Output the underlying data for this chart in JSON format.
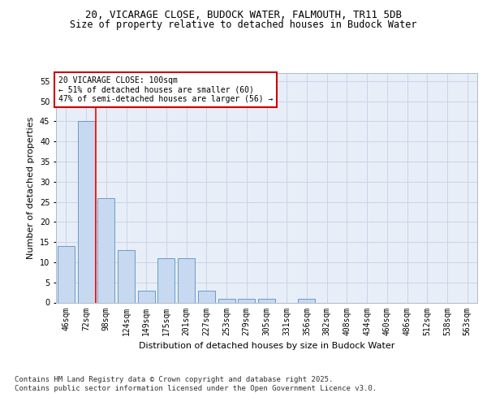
{
  "title_line1": "20, VICARAGE CLOSE, BUDOCK WATER, FALMOUTH, TR11 5DB",
  "title_line2": "Size of property relative to detached houses in Budock Water",
  "xlabel": "Distribution of detached houses by size in Budock Water",
  "ylabel": "Number of detached properties",
  "categories": [
    "46sqm",
    "72sqm",
    "98sqm",
    "124sqm",
    "149sqm",
    "175sqm",
    "201sqm",
    "227sqm",
    "253sqm",
    "279sqm",
    "305sqm",
    "331sqm",
    "356sqm",
    "382sqm",
    "408sqm",
    "434sqm",
    "460sqm",
    "486sqm",
    "512sqm",
    "538sqm",
    "563sqm"
  ],
  "values": [
    14,
    45,
    26,
    13,
    3,
    11,
    11,
    3,
    1,
    1,
    1,
    0,
    1,
    0,
    0,
    0,
    0,
    0,
    0,
    0,
    0
  ],
  "bar_color": "#c6d9f0",
  "bar_edge_color": "#5a8fc2",
  "red_line_x": 1.5,
  "ylim": [
    0,
    57
  ],
  "yticks": [
    0,
    5,
    10,
    15,
    20,
    25,
    30,
    35,
    40,
    45,
    50,
    55
  ],
  "annotation_text": "20 VICARAGE CLOSE: 100sqm\n← 51% of detached houses are smaller (60)\n47% of semi-detached houses are larger (56) →",
  "annotation_box_color": "#ffffff",
  "annotation_box_edge": "#cc0000",
  "footer_line1": "Contains HM Land Registry data © Crown copyright and database right 2025.",
  "footer_line2": "Contains public sector information licensed under the Open Government Licence v3.0.",
  "grid_color": "#c8d4e8",
  "background_color": "#e8eef7",
  "title_fontsize": 9,
  "subtitle_fontsize": 8.5,
  "axis_label_fontsize": 8,
  "tick_fontsize": 7,
  "footer_fontsize": 6.5,
  "annotation_fontsize": 7
}
